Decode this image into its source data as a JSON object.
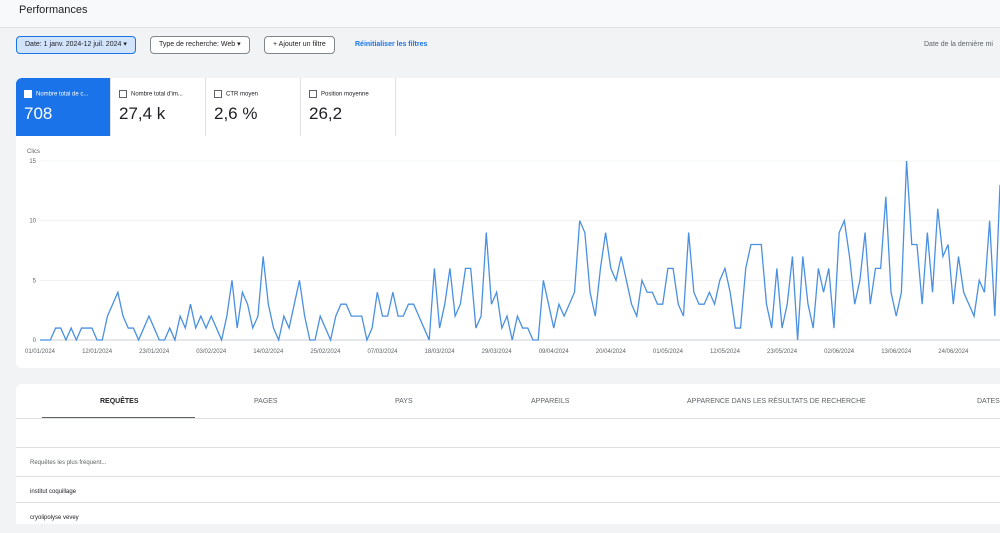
{
  "header": {
    "title": "Performances"
  },
  "filters": {
    "date": "Date: 1 janv. 2024-12 juil. 2024",
    "search_type": "Type de recherche: Web",
    "add": "Ajouter un filtre",
    "reset": "Réinitialiser les filtres",
    "last_update": "Date de la dernière mi"
  },
  "metrics": [
    {
      "label": "Nombre total de c...",
      "value": "708"
    },
    {
      "label": "Nombre total d'im...",
      "value": "27,4 k"
    },
    {
      "label": "CTR moyen",
      "value": "2,6 %"
    },
    {
      "label": "Position moyenne",
      "value": "26,2"
    }
  ],
  "chart_data": {
    "type": "line",
    "y_label": "Clics",
    "ylim": [
      0,
      15
    ],
    "yticks": [
      0,
      5,
      10,
      15
    ],
    "grid": true,
    "categories": [
      "01/01/2024",
      null,
      null,
      null,
      null,
      null,
      null,
      null,
      null,
      null,
      null,
      "12/01/2024",
      null,
      null,
      null,
      null,
      null,
      null,
      null,
      null,
      null,
      null,
      "23/01/2024",
      null,
      null,
      null,
      null,
      null,
      null,
      null,
      null,
      null,
      null,
      "03/02/2024",
      null,
      null,
      null,
      null,
      null,
      null,
      null,
      null,
      null,
      null,
      "14/02/2024",
      null,
      null,
      null,
      null,
      null,
      null,
      null,
      null,
      null,
      null,
      "25/02/2024",
      null,
      null,
      null,
      null,
      null,
      null,
      null,
      null,
      null,
      null,
      "07/03/2024",
      null,
      null,
      null,
      null,
      null,
      null,
      null,
      null,
      null,
      null,
      "18/03/2024",
      null,
      null,
      null,
      null,
      null,
      null,
      null,
      null,
      null,
      null,
      "29/03/2024",
      null,
      null,
      null,
      null,
      null,
      null,
      null,
      null,
      null,
      null,
      "09/04/2024",
      null,
      null,
      null,
      null,
      null,
      null,
      null,
      null,
      null,
      null,
      "20/04/2024",
      null,
      null,
      null,
      null,
      null,
      null,
      null,
      null,
      null,
      null,
      "01/05/2024",
      null,
      null,
      null,
      null,
      null,
      null,
      null,
      null,
      null,
      null,
      "12/05/2024",
      null,
      null,
      null,
      null,
      null,
      null,
      null,
      null,
      null,
      null,
      "23/05/2024",
      null,
      null,
      null,
      null,
      null,
      null,
      null,
      null,
      null,
      null,
      "02/06/2024",
      null,
      null,
      null,
      null,
      null,
      null,
      null,
      null,
      null,
      null,
      "13/06/2024",
      null,
      null,
      null,
      null,
      null,
      null,
      null,
      null,
      null,
      null,
      "24/06/2024",
      null,
      null,
      null,
      null,
      null,
      null,
      null,
      null,
      null
    ],
    "series": [
      {
        "name": "Clics",
        "color": "#4a90e2",
        "values": [
          0,
          0,
          0,
          1,
          1,
          0,
          1,
          0,
          1,
          1,
          1,
          0,
          0,
          2,
          3,
          4,
          2,
          1,
          1,
          0,
          1,
          2,
          1,
          0,
          0,
          1,
          0,
          2,
          1,
          3,
          1,
          2,
          1,
          2,
          1,
          0,
          2,
          5,
          1,
          4,
          3,
          1,
          2,
          7,
          3,
          1,
          0,
          2,
          1,
          3,
          5,
          2,
          0,
          0,
          2,
          1,
          0,
          2,
          3,
          3,
          2,
          2,
          2,
          0,
          1,
          4,
          2,
          2,
          4,
          2,
          2,
          3,
          3,
          2,
          1,
          0,
          6,
          1,
          3,
          6,
          2,
          3,
          6,
          6,
          1,
          2,
          9,
          3,
          4,
          1,
          2,
          0,
          2,
          1,
          1,
          0,
          0,
          5,
          3,
          1,
          3,
          2,
          3,
          4,
          10,
          9,
          4,
          2,
          6,
          9,
          6,
          5,
          7,
          5,
          3,
          2,
          5,
          4,
          4,
          3,
          3,
          6,
          6,
          3,
          2,
          9,
          4,
          3,
          3,
          4,
          3,
          5,
          6,
          4,
          1,
          1,
          6,
          8,
          8,
          8,
          3,
          1,
          6,
          1,
          3,
          7,
          0,
          7,
          3,
          1,
          6,
          4,
          6,
          1,
          9,
          10,
          7,
          3,
          5,
          9,
          3,
          6,
          6,
          12,
          4,
          2,
          4,
          15,
          8,
          8,
          3,
          9,
          4,
          11,
          7,
          8,
          3,
          7,
          4,
          3,
          2,
          5,
          4,
          10,
          2,
          13
        ]
      }
    ]
  },
  "tabs": [
    "REQUÊTES",
    "PAGES",
    "PAYS",
    "APPAREILS",
    "APPARENCE DANS LES RÉSULTATS DE RECHERCHE",
    "DATES"
  ],
  "table": {
    "header": "Requêtes les plus fréquent...",
    "rows": [
      "institut coquillage",
      "cryolipolyse vevey"
    ]
  }
}
